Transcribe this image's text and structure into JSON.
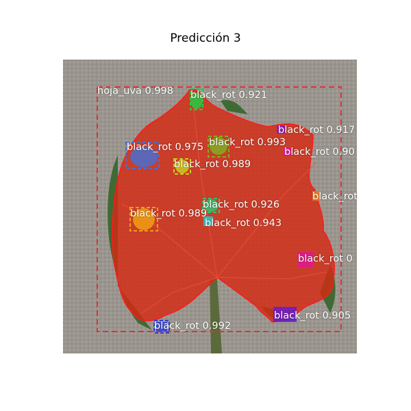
{
  "title": "Predicción 3",
  "colors": {
    "leaf_overlay": "#d42a12",
    "leaf_outline": "#ff1a1a",
    "leaf_box": "#e0303a",
    "background": "#9c9891"
  },
  "detections": [
    {
      "label": "hoja_uva 0.998",
      "color": "#e0303a"
    },
    {
      "label": "black_rot 0.921",
      "color": "#22cc44"
    },
    {
      "label": "black_rot 0.917",
      "color": "#8a1ac8"
    },
    {
      "label": "black_rot 0.993",
      "color": "#7fb020"
    },
    {
      "label": "black_rot 0.975",
      "color": "#4a6ed0"
    },
    {
      "label": "black_rot 0.90",
      "color": "#e0189a"
    },
    {
      "label": "black_rot 0.989",
      "color": "#c8d01a"
    },
    {
      "label": "black_rot",
      "color": "#f07a20"
    },
    {
      "label": "black_rot 0.926",
      "color": "#2ec870"
    },
    {
      "label": "black_rot 0.989",
      "color": "#f0a012"
    },
    {
      "label": "black_rot 0.943",
      "color": "#20d0d0"
    },
    {
      "label": "black_rot 0",
      "color": "#e01890"
    },
    {
      "label": "black_rot 0.905",
      "color": "#6a1ad0"
    },
    {
      "label": "black_rot 0.992",
      "color": "#3040d8"
    }
  ]
}
